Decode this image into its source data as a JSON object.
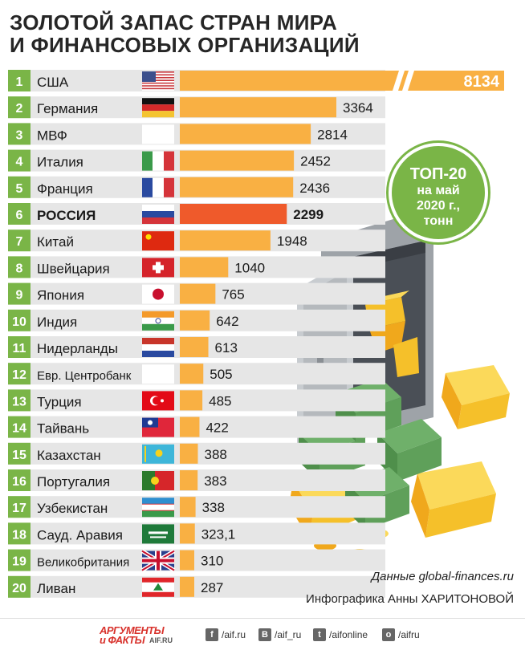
{
  "header": {
    "title_line1": "ЗОЛОТОЙ ЗАПАС СТРАН МИРА",
    "title_line2": "И ФИНАНСОВЫХ ОРГАНИЗАЦИЙ"
  },
  "badge": {
    "line1": "ТОП-20",
    "line2": "на май",
    "line3": "2020 г.,",
    "line4": "тонн"
  },
  "chart_data": {
    "type": "bar",
    "orientation": "horizontal",
    "units": "тонн",
    "ranks": [
      "1",
      "2",
      "3",
      "4",
      "5",
      "6",
      "7",
      "8",
      "9",
      "10",
      "11",
      "12",
      "13",
      "14",
      "15",
      "16",
      "17",
      "18",
      "19",
      "20"
    ],
    "categories": [
      "США",
      "Германия",
      "МВФ",
      "Италия",
      "Франция",
      "РОССИЯ",
      "Китай",
      "Швейцария",
      "Япония",
      "Индия",
      "Нидерланды",
      "Евр. Центробанк",
      "Турция",
      "Тайвань",
      "Казахстан",
      "Португалия",
      "Узбекистан",
      "Сауд. Аравия",
      "Великобритания",
      "Ливан"
    ],
    "values": [
      8134,
      3364,
      2814,
      2452,
      2436,
      2299,
      1948,
      1040,
      765,
      642,
      613,
      505,
      485,
      422,
      388,
      383,
      338,
      323.1,
      310,
      287
    ],
    "value_labels": [
      "8134",
      "3364",
      "2814",
      "2452",
      "2436",
      "2299",
      "1948",
      "1040",
      "765",
      "642",
      "613",
      "505",
      "485",
      "422",
      "388",
      "383",
      "338",
      "323,1",
      "310",
      "287"
    ],
    "highlight": "РОССИЯ",
    "axis_break_on_first_bar": true,
    "colors": {
      "bar": "#f9b043",
      "highlight": "#ef5a2b",
      "rank_box": "#7ab547",
      "row_band": "#e6e6e6"
    }
  },
  "flags": [
    "us-flag",
    "de-flag",
    "blank-flag",
    "it-flag",
    "fr-flag",
    "ru-flag",
    "cn-flag",
    "ch-flag",
    "jp-flag",
    "in-flag",
    "nl-flag",
    "blank-flag",
    "tr-flag",
    "tw-flag",
    "kz-flag",
    "pt-flag",
    "uz-flag",
    "sa-flag",
    "gb-flag",
    "lb-flag"
  ],
  "footer": {
    "source": "Данные global-finances.ru",
    "credit": "Инфографика Анны ХАРИТОНОВОЙ",
    "logo_line1": "АРГУМЕНТЫ",
    "logo_line2": "и ФАКТЫ",
    "logo_site": "AIF.RU",
    "social": [
      {
        "icon": "f",
        "name": "facebook-icon",
        "label": "/aif.ru"
      },
      {
        "icon": "В",
        "name": "vk-icon",
        "label": "/aif_ru"
      },
      {
        "icon": "t",
        "name": "twitter-icon",
        "label": "/aifonline"
      },
      {
        "icon": "о",
        "name": "odnoklassniki-icon",
        "label": "/aifru"
      }
    ]
  }
}
